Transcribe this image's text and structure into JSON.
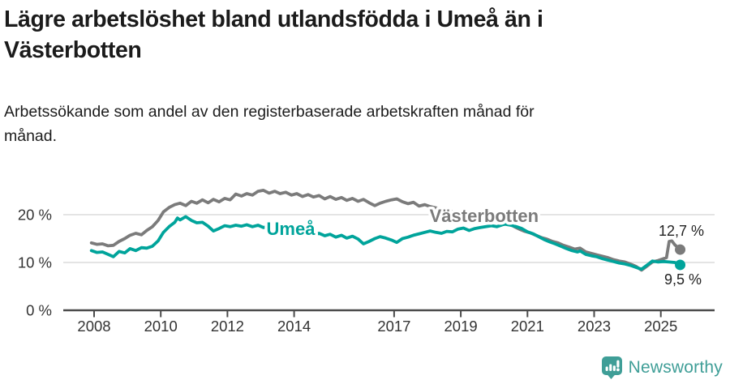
{
  "title_lines": [
    "Lägre arbetslöshet bland utlandsfödda i Umeå än i",
    "Västerbotten"
  ],
  "subtitle_lines": [
    "Arbetssökande som andel av den registerbaserade arbetskraften månad för",
    "månad."
  ],
  "footer": {
    "brand": "Newsworthy",
    "brand_color": "#3f9e97"
  },
  "chart_data": {
    "type": "line",
    "title": "Lägre arbetslöshet bland utlandsfödda i Umeå än i Västerbotten",
    "subtitle": "Arbetssökande som andel av den registerbaserade arbetskraften månad för månad.",
    "xlabel": "",
    "ylabel": "",
    "grid": true,
    "legend_position": "inline-labels",
    "x_range": [
      2007.1,
      2026.6
    ],
    "ylim": [
      0,
      27
    ],
    "y_ticks": [
      {
        "value": 0,
        "label": "0 %"
      },
      {
        "value": 10,
        "label": "10 %"
      },
      {
        "value": 20,
        "label": "20 %"
      }
    ],
    "x_ticks": [
      "2008",
      "2010",
      "2012",
      "2014",
      "2017",
      "2019",
      "2021",
      "2023",
      "2025"
    ],
    "x_tick_years": [
      2008,
      2010,
      2012,
      2014,
      2017,
      2019,
      2021,
      2023,
      2025
    ],
    "colors": {
      "vasterbotten": "#7b7b7b",
      "umea": "#00a49b",
      "grid": "#dcdcdc",
      "axis": "#4b4b4b",
      "tick_text": "#333333",
      "annotation_text": "#222222"
    },
    "series": [
      {
        "name": "Västerbotten",
        "color": "#7b7b7b",
        "end_label": "12,7 %",
        "end_value": 12.7,
        "label_pos": {
          "year": 2019.7,
          "value": 19.8
        },
        "points": [
          [
            2007.92,
            14.1
          ],
          [
            2008.08,
            13.8
          ],
          [
            2008.25,
            13.9
          ],
          [
            2008.42,
            13.5
          ],
          [
            2008.58,
            13.6
          ],
          [
            2008.75,
            14.4
          ],
          [
            2008.92,
            15.0
          ],
          [
            2009.08,
            15.7
          ],
          [
            2009.25,
            16.1
          ],
          [
            2009.42,
            15.8
          ],
          [
            2009.58,
            16.7
          ],
          [
            2009.75,
            17.5
          ],
          [
            2009.92,
            18.8
          ],
          [
            2010.08,
            20.6
          ],
          [
            2010.25,
            21.5
          ],
          [
            2010.42,
            22.1
          ],
          [
            2010.58,
            22.4
          ],
          [
            2010.75,
            21.9
          ],
          [
            2010.92,
            22.8
          ],
          [
            2011.08,
            22.4
          ],
          [
            2011.25,
            23.1
          ],
          [
            2011.42,
            22.5
          ],
          [
            2011.58,
            23.2
          ],
          [
            2011.75,
            22.7
          ],
          [
            2011.92,
            23.4
          ],
          [
            2012.08,
            23.1
          ],
          [
            2012.25,
            24.3
          ],
          [
            2012.42,
            23.9
          ],
          [
            2012.58,
            24.4
          ],
          [
            2012.75,
            24.1
          ],
          [
            2012.92,
            24.9
          ],
          [
            2013.08,
            25.1
          ],
          [
            2013.25,
            24.5
          ],
          [
            2013.42,
            24.9
          ],
          [
            2013.58,
            24.4
          ],
          [
            2013.75,
            24.7
          ],
          [
            2013.92,
            24.1
          ],
          [
            2014.08,
            24.4
          ],
          [
            2014.25,
            23.8
          ],
          [
            2014.42,
            24.2
          ],
          [
            2014.58,
            23.7
          ],
          [
            2014.75,
            24.0
          ],
          [
            2014.92,
            23.3
          ],
          [
            2015.08,
            23.8
          ],
          [
            2015.25,
            23.2
          ],
          [
            2015.42,
            23.6
          ],
          [
            2015.58,
            23.0
          ],
          [
            2015.75,
            23.4
          ],
          [
            2015.92,
            22.8
          ],
          [
            2016.08,
            23.2
          ],
          [
            2016.25,
            22.5
          ],
          [
            2016.42,
            21.9
          ],
          [
            2016.58,
            22.4
          ],
          [
            2016.75,
            22.8
          ],
          [
            2016.92,
            23.1
          ],
          [
            2017.08,
            23.3
          ],
          [
            2017.25,
            22.7
          ],
          [
            2017.42,
            22.3
          ],
          [
            2017.58,
            22.6
          ],
          [
            2017.75,
            21.8
          ],
          [
            2017.92,
            22.1
          ],
          [
            2018.08,
            21.7
          ],
          [
            2018.33,
            21.3
          ],
          [
            2018.58,
            20.9
          ],
          [
            2018.83,
            20.5
          ],
          [
            2019.08,
            20.1
          ],
          [
            2019.33,
            19.8
          ],
          [
            2019.58,
            19.5
          ],
          [
            2019.83,
            19.3
          ],
          [
            2020.08,
            19.4
          ],
          [
            2020.25,
            19.7
          ],
          [
            2020.42,
            19.0
          ],
          [
            2020.58,
            17.6
          ],
          [
            2020.75,
            17.0
          ],
          [
            2020.92,
            16.5
          ],
          [
            2021.08,
            16.2
          ],
          [
            2021.25,
            15.7
          ],
          [
            2021.42,
            15.2
          ],
          [
            2021.58,
            14.9
          ],
          [
            2021.75,
            14.4
          ],
          [
            2021.92,
            14.1
          ],
          [
            2022.08,
            13.6
          ],
          [
            2022.25,
            13.2
          ],
          [
            2022.42,
            12.8
          ],
          [
            2022.58,
            13.0
          ],
          [
            2022.75,
            12.2
          ],
          [
            2022.92,
            11.9
          ],
          [
            2023.08,
            11.6
          ],
          [
            2023.25,
            11.3
          ],
          [
            2023.42,
            11.0
          ],
          [
            2023.58,
            10.6
          ],
          [
            2023.75,
            10.3
          ],
          [
            2023.92,
            10.1
          ],
          [
            2024.08,
            9.7
          ],
          [
            2024.25,
            9.2
          ],
          [
            2024.42,
            8.4
          ],
          [
            2024.58,
            9.2
          ],
          [
            2024.75,
            10.1
          ],
          [
            2024.92,
            10.4
          ],
          [
            2025.08,
            10.8
          ],
          [
            2025.17,
            11.0
          ],
          [
            2025.25,
            14.4
          ],
          [
            2025.33,
            14.5
          ],
          [
            2025.42,
            13.7
          ],
          [
            2025.58,
            12.7
          ]
        ]
      },
      {
        "name": "Umeå",
        "color": "#00a49b",
        "end_label": "9,5 %",
        "end_value": 9.5,
        "label_pos": {
          "year": 2013.9,
          "value": 17.1
        },
        "points": [
          [
            2007.92,
            12.5
          ],
          [
            2008.08,
            12.1
          ],
          [
            2008.25,
            12.2
          ],
          [
            2008.42,
            11.7
          ],
          [
            2008.58,
            11.2
          ],
          [
            2008.75,
            12.3
          ],
          [
            2008.92,
            12.0
          ],
          [
            2009.08,
            12.9
          ],
          [
            2009.25,
            12.5
          ],
          [
            2009.42,
            13.1
          ],
          [
            2009.58,
            13.0
          ],
          [
            2009.75,
            13.4
          ],
          [
            2009.92,
            14.5
          ],
          [
            2010.08,
            16.3
          ],
          [
            2010.25,
            17.5
          ],
          [
            2010.42,
            18.4
          ],
          [
            2010.5,
            19.3
          ],
          [
            2010.58,
            18.9
          ],
          [
            2010.75,
            19.6
          ],
          [
            2010.92,
            18.8
          ],
          [
            2011.08,
            18.3
          ],
          [
            2011.25,
            18.4
          ],
          [
            2011.42,
            17.6
          ],
          [
            2011.58,
            16.6
          ],
          [
            2011.75,
            17.1
          ],
          [
            2011.92,
            17.7
          ],
          [
            2012.08,
            17.5
          ],
          [
            2012.25,
            17.8
          ],
          [
            2012.42,
            17.6
          ],
          [
            2012.58,
            17.9
          ],
          [
            2012.75,
            17.5
          ],
          [
            2012.92,
            17.8
          ],
          [
            2013.08,
            17.3
          ],
          [
            2013.25,
            17.6
          ],
          [
            2013.42,
            17.2
          ],
          [
            2013.58,
            17.5
          ],
          [
            2013.75,
            17.3
          ],
          [
            2013.92,
            16.9
          ],
          [
            2014.08,
            16.5
          ],
          [
            2014.25,
            16.1
          ],
          [
            2014.42,
            16.4
          ],
          [
            2014.58,
            15.8
          ],
          [
            2014.75,
            16.1
          ],
          [
            2014.92,
            15.6
          ],
          [
            2015.08,
            15.9
          ],
          [
            2015.25,
            15.3
          ],
          [
            2015.42,
            15.7
          ],
          [
            2015.58,
            15.1
          ],
          [
            2015.75,
            15.5
          ],
          [
            2015.92,
            14.9
          ],
          [
            2016.08,
            13.9
          ],
          [
            2016.25,
            14.4
          ],
          [
            2016.42,
            15.0
          ],
          [
            2016.58,
            15.4
          ],
          [
            2016.75,
            15.1
          ],
          [
            2016.92,
            14.7
          ],
          [
            2017.08,
            14.2
          ],
          [
            2017.25,
            15.0
          ],
          [
            2017.42,
            15.3
          ],
          [
            2017.58,
            15.7
          ],
          [
            2017.75,
            16.0
          ],
          [
            2017.92,
            16.3
          ],
          [
            2018.08,
            16.6
          ],
          [
            2018.25,
            16.3
          ],
          [
            2018.42,
            16.1
          ],
          [
            2018.58,
            16.5
          ],
          [
            2018.75,
            16.4
          ],
          [
            2018.92,
            17.0
          ],
          [
            2019.08,
            17.2
          ],
          [
            2019.25,
            16.7
          ],
          [
            2019.42,
            17.1
          ],
          [
            2019.58,
            17.3
          ],
          [
            2019.75,
            17.5
          ],
          [
            2019.92,
            17.7
          ],
          [
            2020.08,
            17.5
          ],
          [
            2020.25,
            17.9
          ],
          [
            2020.33,
            18.0
          ],
          [
            2020.5,
            17.8
          ],
          [
            2020.67,
            17.5
          ],
          [
            2020.83,
            17.1
          ],
          [
            2021.0,
            16.4
          ],
          [
            2021.17,
            16.0
          ],
          [
            2021.33,
            15.4
          ],
          [
            2021.5,
            14.8
          ],
          [
            2021.67,
            14.3
          ],
          [
            2021.83,
            13.9
          ],
          [
            2022.0,
            13.4
          ],
          [
            2022.17,
            12.9
          ],
          [
            2022.33,
            12.5
          ],
          [
            2022.5,
            12.2
          ],
          [
            2022.58,
            12.4
          ],
          [
            2022.75,
            11.7
          ],
          [
            2022.92,
            11.4
          ],
          [
            2023.08,
            11.2
          ],
          [
            2023.25,
            10.8
          ],
          [
            2023.42,
            10.5
          ],
          [
            2023.58,
            10.2
          ],
          [
            2023.75,
            9.9
          ],
          [
            2023.92,
            9.7
          ],
          [
            2024.08,
            9.4
          ],
          [
            2024.25,
            9.0
          ],
          [
            2024.42,
            8.6
          ],
          [
            2024.58,
            9.4
          ],
          [
            2024.75,
            10.3
          ],
          [
            2024.92,
            10.1
          ],
          [
            2025.08,
            10.2
          ],
          [
            2025.25,
            10.1
          ],
          [
            2025.42,
            10.0
          ],
          [
            2025.58,
            9.5
          ]
        ]
      }
    ]
  }
}
